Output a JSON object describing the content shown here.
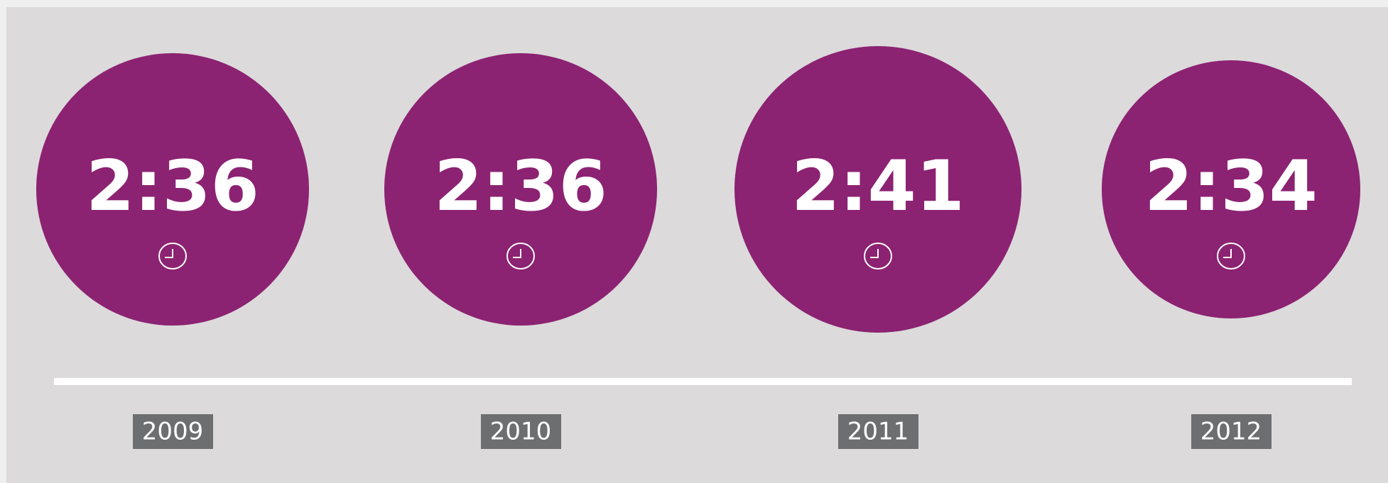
{
  "items": [
    {
      "time": "2:36",
      "year": "2009"
    },
    {
      "time": "2:36",
      "year": "2010"
    },
    {
      "time": "2:41",
      "year": "2011"
    },
    {
      "time": "2:34",
      "year": "2012"
    }
  ]
}
